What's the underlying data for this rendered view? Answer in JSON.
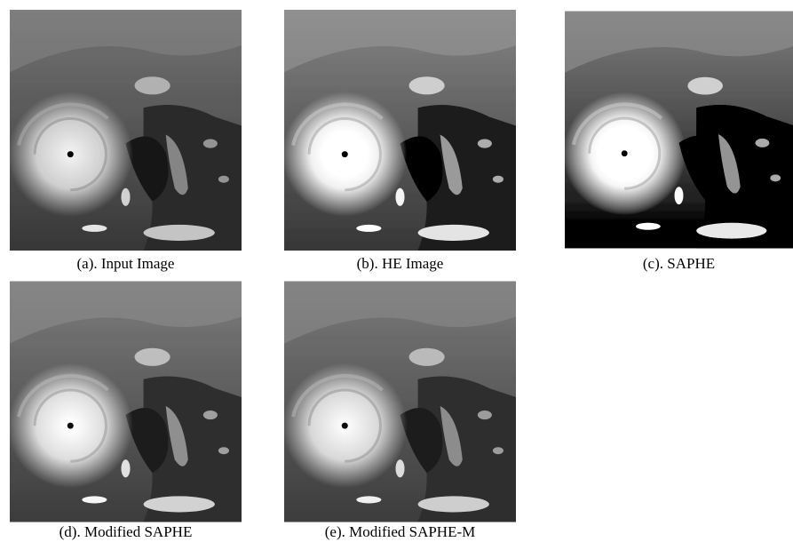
{
  "figure": {
    "panels": [
      {
        "caption": "(a). Input Image"
      },
      {
        "caption": "(b). HE Image"
      },
      {
        "caption": "(c). SAPHE"
      },
      {
        "caption": "(d). Modified SAPHE"
      },
      {
        "caption": "(e). Modified SAPHE-M"
      }
    ]
  }
}
